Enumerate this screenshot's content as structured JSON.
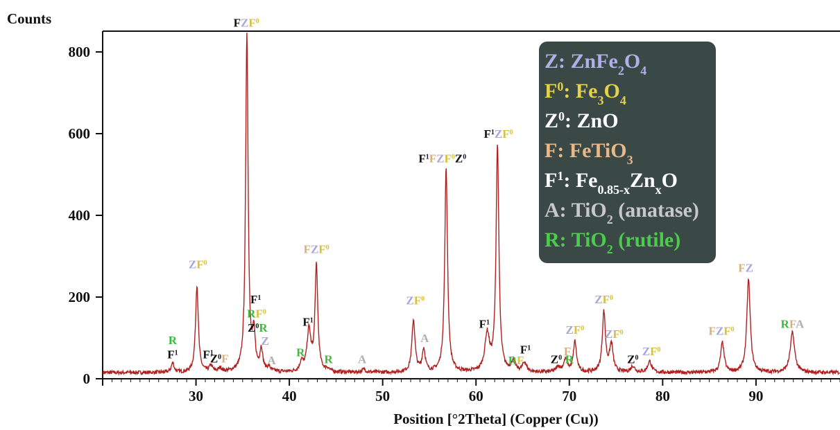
{
  "chart_data": {
    "type": "line",
    "ylabel": "Counts",
    "xlabel": "Position [°2Theta] (Copper (Cu))",
    "xlim": [
      20,
      99
    ],
    "ylim": [
      0,
      850
    ],
    "x_ticks": [
      30,
      40,
      50,
      60,
      70,
      80,
      90
    ],
    "y_ticks": [
      0,
      200,
      400,
      600,
      800
    ],
    "line_color": "#b02020",
    "baseline": 15,
    "peaks": [
      {
        "x": 27.5,
        "y": 38,
        "w": 0.18
      },
      {
        "x": 30.1,
        "y": 228,
        "w": 0.18
      },
      {
        "x": 31.6,
        "y": 30,
        "w": 0.2
      },
      {
        "x": 32.6,
        "y": 24,
        "w": 0.2
      },
      {
        "x": 35.45,
        "y": 845,
        "w": 0.16
      },
      {
        "x": 36.2,
        "y": 100,
        "w": 0.18
      },
      {
        "x": 37.0,
        "y": 68,
        "w": 0.18
      },
      {
        "x": 37.8,
        "y": 25,
        "w": 0.2
      },
      {
        "x": 41.3,
        "y": 38,
        "w": 0.2
      },
      {
        "x": 42.1,
        "y": 115,
        "w": 0.25
      },
      {
        "x": 42.9,
        "y": 272,
        "w": 0.18
      },
      {
        "x": 44.1,
        "y": 22,
        "w": 0.2
      },
      {
        "x": 48.0,
        "y": 22,
        "w": 0.25
      },
      {
        "x": 53.3,
        "y": 142,
        "w": 0.2
      },
      {
        "x": 54.4,
        "y": 70,
        "w": 0.2
      },
      {
        "x": 56.8,
        "y": 515,
        "w": 0.18
      },
      {
        "x": 61.2,
        "y": 105,
        "w": 0.3
      },
      {
        "x": 62.3,
        "y": 568,
        "w": 0.18
      },
      {
        "x": 64.0,
        "y": 40,
        "w": 0.25
      },
      {
        "x": 65.2,
        "y": 38,
        "w": 0.25
      },
      {
        "x": 68.8,
        "y": 28,
        "w": 0.25
      },
      {
        "x": 69.6,
        "y": 45,
        "w": 0.25
      },
      {
        "x": 70.6,
        "y": 90,
        "w": 0.2
      },
      {
        "x": 73.7,
        "y": 162,
        "w": 0.2
      },
      {
        "x": 74.5,
        "y": 82,
        "w": 0.22
      },
      {
        "x": 76.8,
        "y": 30,
        "w": 0.25
      },
      {
        "x": 78.6,
        "y": 42,
        "w": 0.25
      },
      {
        "x": 86.4,
        "y": 88,
        "w": 0.22
      },
      {
        "x": 89.2,
        "y": 243,
        "w": 0.22
      },
      {
        "x": 93.9,
        "y": 112,
        "w": 0.28
      }
    ],
    "annotations": [
      {
        "x": 27.5,
        "y": 85,
        "segments": [
          {
            "text": "R",
            "color": "#3dbb3d"
          }
        ]
      },
      {
        "x": 27.5,
        "y": 50,
        "segments": [
          {
            "text": "F",
            "color": "#111111"
          },
          {
            "text": "1",
            "color": "#111111",
            "sup": true
          }
        ]
      },
      {
        "x": 30.2,
        "y": 270,
        "segments": [
          {
            "text": "Z",
            "color": "#a7a7d8"
          },
          {
            "text": "F",
            "color": "#d8c040"
          },
          {
            "text": "0",
            "color": "#d8c040",
            "sup": true
          }
        ]
      },
      {
        "x": 31.3,
        "y": 50,
        "segments": [
          {
            "text": "F",
            "color": "#111111"
          },
          {
            "text": "1",
            "color": "#111111",
            "sup": true
          }
        ]
      },
      {
        "x": 32.5,
        "y": 40,
        "segments": [
          {
            "text": "Z",
            "color": "#111111"
          },
          {
            "text": "0",
            "color": "#111111",
            "sup": true
          },
          {
            "text": "F",
            "color": "#d8b080"
          }
        ]
      },
      {
        "x": 35.4,
        "y": 862,
        "segments": [
          {
            "text": "F",
            "color": "#111111"
          },
          {
            "text": "Z",
            "color": "#a7a7d8"
          },
          {
            "text": "F",
            "color": "#d8c040"
          },
          {
            "text": "0",
            "color": "#d8c040",
            "sup": true
          }
        ]
      },
      {
        "x": 36.4,
        "y": 185,
        "segments": [
          {
            "text": "F",
            "color": "#111111"
          },
          {
            "text": "1",
            "color": "#111111",
            "sup": true
          }
        ]
      },
      {
        "x": 36.5,
        "y": 150,
        "segments": [
          {
            "text": "R",
            "color": "#3dbb3d"
          },
          {
            "text": "F",
            "color": "#d8c040"
          },
          {
            "text": "0",
            "color": "#d8c040",
            "sup": true
          }
        ]
      },
      {
        "x": 36.6,
        "y": 115,
        "segments": [
          {
            "text": "Z",
            "color": "#111111"
          },
          {
            "text": "0",
            "color": "#111111",
            "sup": true
          },
          {
            "text": "R",
            "color": "#3dbb3d"
          }
        ]
      },
      {
        "x": 37.4,
        "y": 83,
        "segments": [
          {
            "text": "Z",
            "color": "#a7a7d8"
          }
        ]
      },
      {
        "x": 38.1,
        "y": 36,
        "segments": [
          {
            "text": "A",
            "color": "#b0b0b0"
          }
        ]
      },
      {
        "x": 41.2,
        "y": 55,
        "segments": [
          {
            "text": "R",
            "color": "#3dbb3d"
          }
        ]
      },
      {
        "x": 42.0,
        "y": 130,
        "segments": [
          {
            "text": "F",
            "color": "#111111"
          },
          {
            "text": "1",
            "color": "#111111",
            "sup": true
          }
        ]
      },
      {
        "x": 42.9,
        "y": 308,
        "segments": [
          {
            "text": "F",
            "color": "#d8b080"
          },
          {
            "text": "Z",
            "color": "#a7a7d8"
          },
          {
            "text": "F",
            "color": "#d8c040"
          },
          {
            "text": "0",
            "color": "#d8c040",
            "sup": true
          }
        ]
      },
      {
        "x": 44.2,
        "y": 38,
        "segments": [
          {
            "text": "R",
            "color": "#3dbb3d"
          }
        ]
      },
      {
        "x": 47.8,
        "y": 38,
        "segments": [
          {
            "text": "A",
            "color": "#b0b0b0"
          }
        ]
      },
      {
        "x": 53.5,
        "y": 182,
        "segments": [
          {
            "text": "Z",
            "color": "#a7a7d8"
          },
          {
            "text": "F",
            "color": "#d8c040"
          },
          {
            "text": "0",
            "color": "#d8c040",
            "sup": true
          }
        ]
      },
      {
        "x": 54.5,
        "y": 90,
        "segments": [
          {
            "text": "A",
            "color": "#b0b0b0"
          }
        ]
      },
      {
        "x": 56.4,
        "y": 530,
        "segments": [
          {
            "text": "F",
            "color": "#111111"
          },
          {
            "text": "1",
            "color": "#111111",
            "sup": true
          },
          {
            "text": "F",
            "color": "#d8b080"
          },
          {
            "text": "Z",
            "color": "#a7a7d8"
          },
          {
            "text": "F",
            "color": "#d8c040"
          },
          {
            "text": "0",
            "color": "#d8c040",
            "sup": true
          },
          {
            "text": "Z",
            "color": "#111111"
          },
          {
            "text": "0",
            "color": "#111111",
            "sup": true
          }
        ]
      },
      {
        "x": 60.9,
        "y": 125,
        "segments": [
          {
            "text": "F",
            "color": "#111111"
          },
          {
            "text": "1",
            "color": "#111111",
            "sup": true
          }
        ]
      },
      {
        "x": 62.4,
        "y": 590,
        "segments": [
          {
            "text": "F",
            "color": "#111111"
          },
          {
            "text": "1",
            "color": "#111111",
            "sup": true
          },
          {
            "text": "Z",
            "color": "#a7a7d8"
          },
          {
            "text": "F",
            "color": "#d8c040"
          },
          {
            "text": "0",
            "color": "#d8c040",
            "sup": true
          }
        ]
      },
      {
        "x": 64.3,
        "y": 36,
        "segments": [
          {
            "text": "R",
            "color": "#3dbb3d"
          },
          {
            "text": "F",
            "color": "#d8c040"
          }
        ]
      },
      {
        "x": 65.3,
        "y": 62,
        "segments": [
          {
            "text": "F",
            "color": "#111111"
          },
          {
            "text": "1",
            "color": "#111111",
            "sup": true
          }
        ]
      },
      {
        "x": 68.6,
        "y": 38,
        "segments": [
          {
            "text": "Z",
            "color": "#111111"
          },
          {
            "text": "0",
            "color": "#111111",
            "sup": true
          }
        ]
      },
      {
        "x": 69.8,
        "y": 58,
        "segments": [
          {
            "text": "F",
            "color": "#d8b080"
          }
        ]
      },
      {
        "x": 70.0,
        "y": 38,
        "segments": [
          {
            "text": "R",
            "color": "#3dbb3d"
          }
        ]
      },
      {
        "x": 70.6,
        "y": 110,
        "segments": [
          {
            "text": "Z",
            "color": "#a7a7d8"
          },
          {
            "text": "F",
            "color": "#d8c040"
          },
          {
            "text": "0",
            "color": "#d8c040",
            "sup": true
          }
        ]
      },
      {
        "x": 73.7,
        "y": 185,
        "segments": [
          {
            "text": "Z",
            "color": "#a7a7d8"
          },
          {
            "text": "F",
            "color": "#d8c040"
          },
          {
            "text": "0",
            "color": "#d8c040",
            "sup": true
          }
        ]
      },
      {
        "x": 74.8,
        "y": 100,
        "segments": [
          {
            "text": "Z",
            "color": "#a7a7d8"
          },
          {
            "text": "F",
            "color": "#d8c040"
          },
          {
            "text": "0",
            "color": "#d8c040",
            "sup": true
          }
        ]
      },
      {
        "x": 76.8,
        "y": 38,
        "segments": [
          {
            "text": "Z",
            "color": "#111111"
          },
          {
            "text": "0",
            "color": "#111111",
            "sup": true
          }
        ]
      },
      {
        "x": 78.8,
        "y": 58,
        "segments": [
          {
            "text": "Z",
            "color": "#a7a7d8"
          },
          {
            "text": "F",
            "color": "#d8c040"
          },
          {
            "text": "0",
            "color": "#d8c040",
            "sup": true
          }
        ]
      },
      {
        "x": 86.3,
        "y": 108,
        "segments": [
          {
            "text": "F",
            "color": "#d8b080"
          },
          {
            "text": "Z",
            "color": "#a7a7d8"
          },
          {
            "text": "F",
            "color": "#d8c040"
          },
          {
            "text": "0",
            "color": "#d8c040",
            "sup": true
          }
        ]
      },
      {
        "x": 88.9,
        "y": 262,
        "segments": [
          {
            "text": "F",
            "color": "#d8b080"
          },
          {
            "text": "Z",
            "color": "#a7a7d8"
          }
        ]
      },
      {
        "x": 93.9,
        "y": 125,
        "segments": [
          {
            "text": "R",
            "color": "#3dbb3d"
          },
          {
            "text": "F",
            "color": "#d8b080"
          },
          {
            "text": "A",
            "color": "#b0b0b0"
          }
        ]
      }
    ],
    "legend": {
      "position": "top-right",
      "background": "#3a4846",
      "entries": [
        {
          "segments": [
            {
              "text": "Z: ZnFe",
              "color": "#b0b0e6"
            },
            {
              "text": "2",
              "color": "#b0b0e6",
              "sub": true
            },
            {
              "text": "O",
              "color": "#b0b0e6"
            },
            {
              "text": "4",
              "color": "#b0b0e6",
              "sub": true
            }
          ]
        },
        {
          "segments": [
            {
              "text": "F",
              "color": "#e6d24a"
            },
            {
              "text": "0",
              "color": "#e6d24a",
              "sup": true
            },
            {
              "text": ": Fe",
              "color": "#e6d24a"
            },
            {
              "text": "3",
              "color": "#e6d24a",
              "sub": true
            },
            {
              "text": "O",
              "color": "#e6d24a"
            },
            {
              "text": "4",
              "color": "#e6d24a",
              "sub": true
            }
          ]
        },
        {
          "segments": [
            {
              "text": "Z",
              "color": "#ffffff"
            },
            {
              "text": "0",
              "color": "#ffffff",
              "sup": true
            },
            {
              "text": ": ZnO",
              "color": "#ffffff"
            }
          ]
        },
        {
          "segments": [
            {
              "text": "F: FeTiO",
              "color": "#e6b88a"
            },
            {
              "text": "3",
              "color": "#e6b88a",
              "sub": true
            }
          ]
        },
        {
          "segments": [
            {
              "text": "F",
              "color": "#ffffff"
            },
            {
              "text": "1",
              "color": "#ffffff",
              "sup": true
            },
            {
              "text": ": Fe",
              "color": "#ffffff"
            },
            {
              "text": "0.85-x",
              "color": "#ffffff",
              "sub": true
            },
            {
              "text": "Zn",
              "color": "#ffffff"
            },
            {
              "text": "x",
              "color": "#ffffff",
              "sub": true
            },
            {
              "text": "O",
              "color": "#ffffff"
            }
          ]
        },
        {
          "segments": [
            {
              "text": "A: TiO",
              "color": "#c8c8c8"
            },
            {
              "text": "2",
              "color": "#c8c8c8",
              "sub": true
            },
            {
              "text": " (anatase)",
              "color": "#c8c8c8"
            }
          ]
        },
        {
          "segments": [
            {
              "text": "R: TiO",
              "color": "#4ccc4c"
            },
            {
              "text": "2",
              "color": "#4ccc4c",
              "sub": true
            },
            {
              "text": " (rutile)",
              "color": "#4ccc4c"
            }
          ]
        }
      ]
    }
  }
}
